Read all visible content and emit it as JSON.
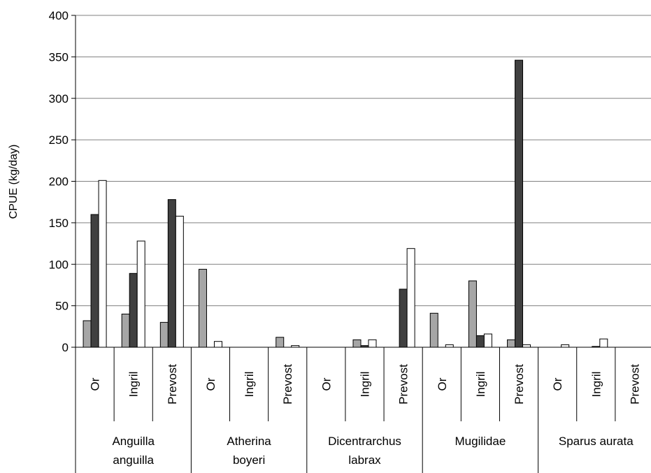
{
  "chart_data": {
    "type": "bar",
    "ylabel": "CPUE (kg/day)",
    "ylim": [
      0,
      400
    ],
    "yticks": [
      0,
      50,
      100,
      150,
      200,
      250,
      300,
      350,
      400
    ],
    "grid": true,
    "legend": "none",
    "colors": [
      "#a6a6a6",
      "#404040",
      "#ffffff"
    ],
    "groups": [
      {
        "label_lines": [
          "Anguilla",
          "anguilla"
        ],
        "categories": [
          "Or",
          "Ingril",
          "Prevost"
        ],
        "values": [
          [
            32,
            160,
            201
          ],
          [
            40,
            89,
            128
          ],
          [
            30,
            178,
            158
          ]
        ]
      },
      {
        "label_lines": [
          "Atherina",
          "boyeri"
        ],
        "categories": [
          "Or",
          "Ingril",
          "Prevost"
        ],
        "values": [
          [
            94,
            0,
            7
          ],
          [
            0,
            0,
            0
          ],
          [
            12,
            0,
            2
          ]
        ]
      },
      {
        "label_lines": [
          "Dicentrarchus",
          "labrax"
        ],
        "categories": [
          "Or",
          "Ingril",
          "Prevost"
        ],
        "values": [
          [
            0,
            0,
            0
          ],
          [
            9,
            2,
            9
          ],
          [
            0,
            70,
            119
          ]
        ]
      },
      {
        "label_lines": [
          "Mugilidae"
        ],
        "categories": [
          "Or",
          "Ingril",
          "Prevost"
        ],
        "values": [
          [
            41,
            0,
            3
          ],
          [
            80,
            14,
            16
          ],
          [
            9,
            346,
            3
          ]
        ]
      },
      {
        "label_lines": [
          "Sparus aurata"
        ],
        "categories": [
          "Or",
          "Ingril",
          "Prevost"
        ],
        "values": [
          [
            0,
            0,
            3
          ],
          [
            0,
            1,
            10
          ],
          [
            0,
            0,
            0
          ]
        ]
      }
    ]
  }
}
